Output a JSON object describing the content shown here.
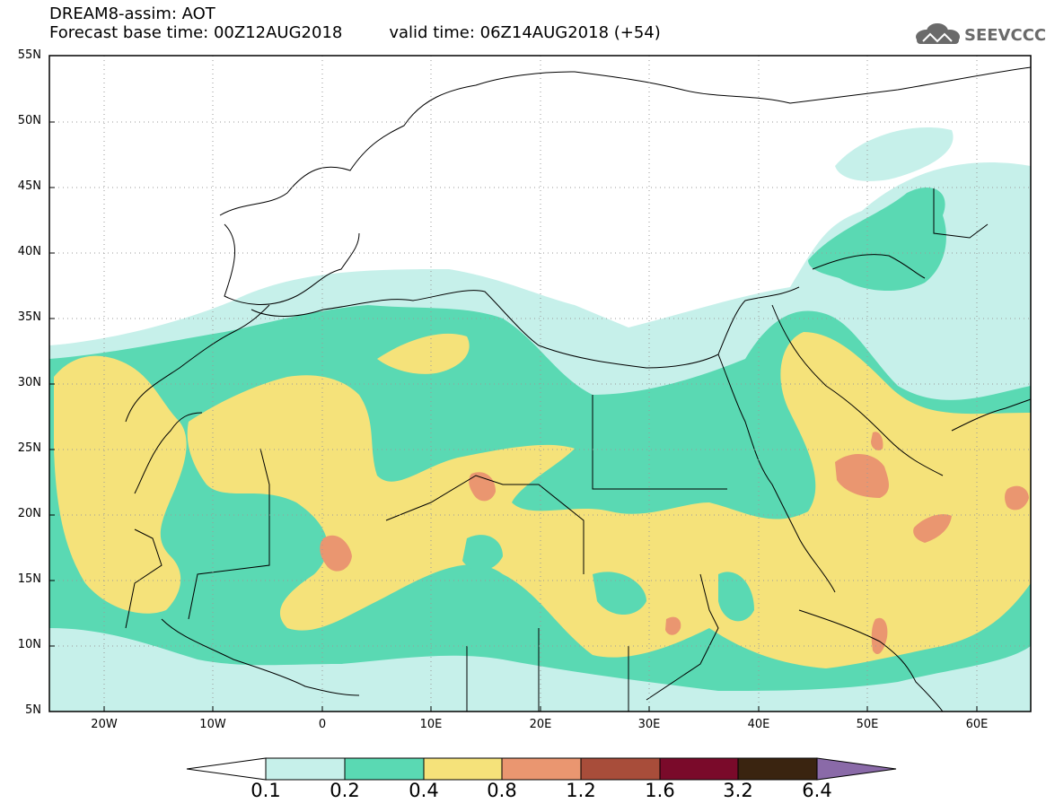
{
  "header": {
    "title": "DREAM8-assim: AOT",
    "base_time": "Forecast base time: 00Z12AUG2018",
    "valid_time": "valid time: 06Z14AUG2018 (+54)",
    "logo_text": "SEEVCCC"
  },
  "map": {
    "lat_labels": [
      "55N",
      "50N",
      "45N",
      "40N",
      "35N",
      "30N",
      "25N",
      "20N",
      "15N",
      "10N",
      "5N"
    ],
    "lon_labels": [
      "20W",
      "10W",
      "0",
      "10E",
      "20E",
      "30E",
      "40E",
      "50E",
      "60E"
    ],
    "lat_range": [
      5,
      55
    ],
    "lon_range": [
      -25,
      65
    ],
    "grid": true,
    "field": "Aerosol optical thickness (dust)"
  },
  "colorbar": {
    "labels": [
      "0.1",
      "0.2",
      "0.4",
      "0.8",
      "1.2",
      "1.6",
      "3.2",
      "6.4"
    ],
    "colors": [
      "#ffffff",
      "#c6f0ea",
      "#5ad9b3",
      "#f5e27a",
      "#ea9670",
      "#a84d3a",
      "#7a0a2a",
      "#3a2410",
      "#8a6aa8"
    ]
  }
}
